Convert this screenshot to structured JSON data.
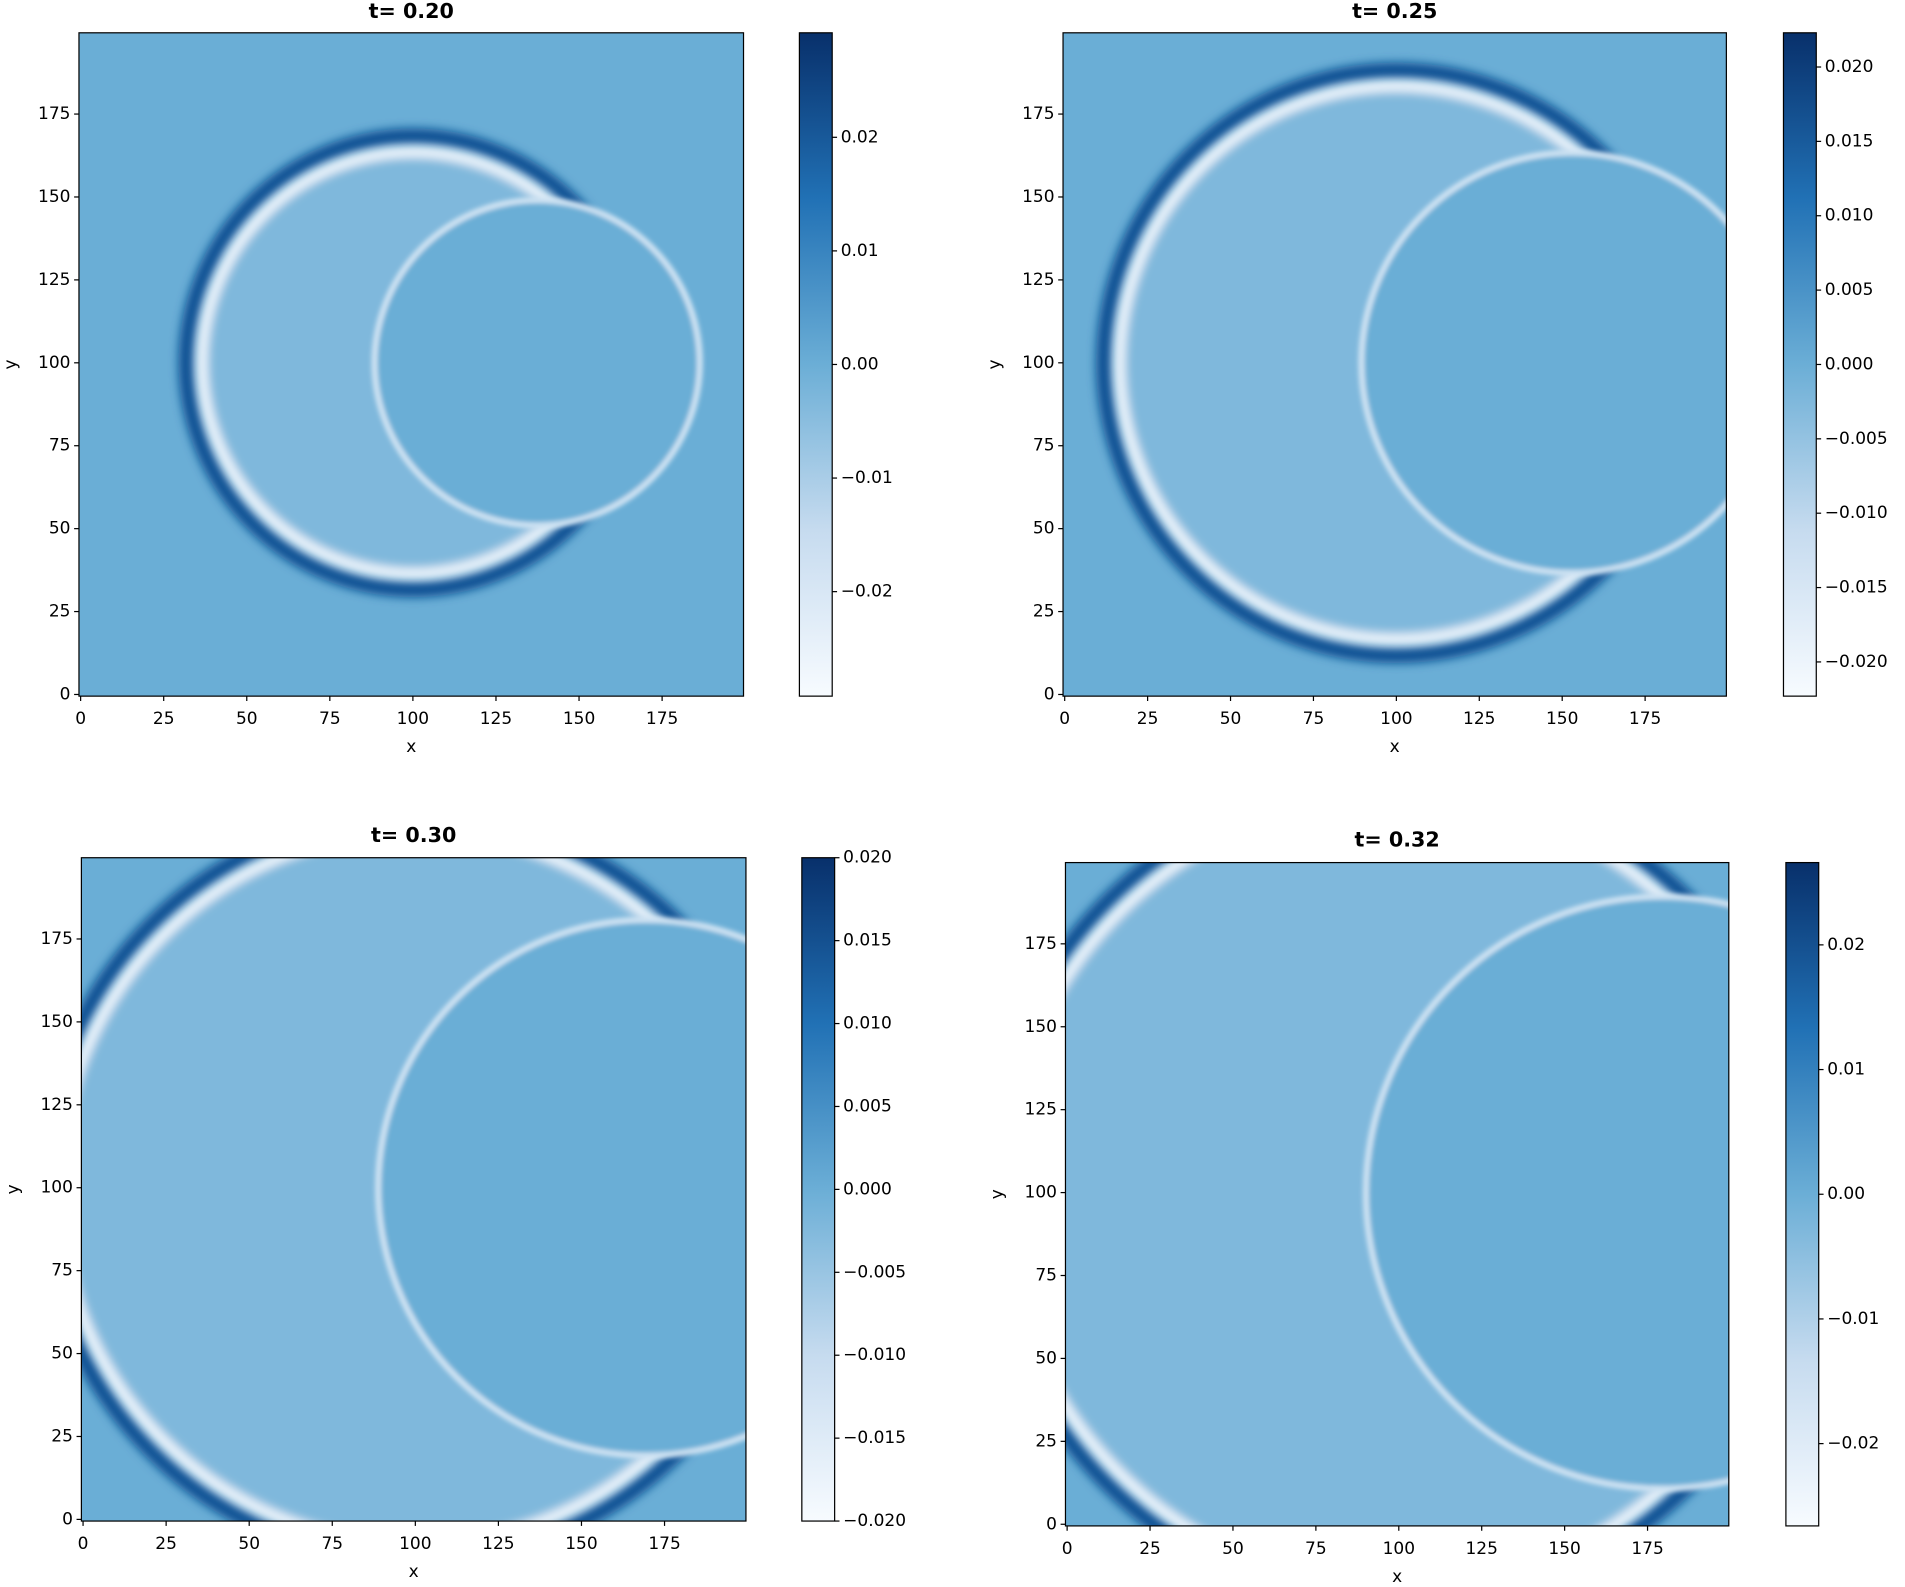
{
  "chart_data": [
    {
      "type": "heatmap",
      "title": "t= 0.20",
      "xlabel": "x",
      "ylabel": "y",
      "xlim": [
        -0.5,
        199.5
      ],
      "ylim": [
        -0.5,
        199.5
      ],
      "xticks": [
        0,
        25,
        50,
        75,
        100,
        125,
        150,
        175
      ],
      "yticks": [
        0,
        25,
        50,
        75,
        100,
        125,
        150,
        175
      ],
      "clim": [
        -0.0292,
        0.0292
      ],
      "cticks": [
        0.02,
        0.01,
        {
          "value": 0,
          "label": "0.00"
        },
        {
          "value": -0.01,
          "label": "−0.01"
        },
        {
          "value": -0.02,
          "label": "−0.02"
        }
      ]
    },
    {
      "type": "heatmap",
      "title": "t= 0.25",
      "xlabel": "x",
      "ylabel": "y",
      "xlim": [
        -0.5,
        199.5
      ],
      "ylim": [
        -0.5,
        199.5
      ],
      "xticks": [
        0,
        25,
        50,
        75,
        100,
        125,
        150,
        175
      ],
      "yticks": [
        0,
        25,
        50,
        75,
        100,
        125,
        150,
        175
      ],
      "clim": [
        -0.0223,
        0.0223
      ],
      "cticks": [
        {
          "value": 0.02,
          "label": "0.020"
        },
        {
          "value": 0.015,
          "label": "0.015"
        },
        {
          "value": 0.01,
          "label": "0.010"
        },
        {
          "value": 0.005,
          "label": "0.005"
        },
        {
          "value": 0,
          "label": "0.000"
        },
        {
          "value": -0.005,
          "label": "−0.005"
        },
        {
          "value": -0.01,
          "label": "−0.010"
        },
        {
          "value": -0.015,
          "label": "−0.015"
        },
        {
          "value": -0.02,
          "label": "−0.020"
        }
      ]
    },
    {
      "type": "heatmap",
      "title": "t= 0.30",
      "xlabel": "x",
      "ylabel": "y",
      "xlim": [
        -0.5,
        199.5
      ],
      "ylim": [
        -0.5,
        199.5
      ],
      "xticks": [
        0,
        25,
        50,
        75,
        100,
        125,
        150,
        175
      ],
      "yticks": [
        0,
        25,
        50,
        75,
        100,
        125,
        150,
        175
      ],
      "clim": [
        -0.02,
        0.02
      ],
      "cticks": [
        {
          "value": 0.02,
          "label": "0.020"
        },
        {
          "value": 0.015,
          "label": "0.015"
        },
        {
          "value": 0.01,
          "label": "0.010"
        },
        {
          "value": 0.005,
          "label": "0.005"
        },
        {
          "value": 0,
          "label": "0.000"
        },
        {
          "value": -0.005,
          "label": "−0.005"
        },
        {
          "value": -0.01,
          "label": "−0.010"
        },
        {
          "value": -0.015,
          "label": "−0.015"
        },
        {
          "value": -0.02,
          "label": "−0.020"
        }
      ]
    },
    {
      "type": "heatmap",
      "title": "t= 0.32",
      "xlabel": "x",
      "ylabel": "y",
      "xlim": [
        -0.5,
        199.5
      ],
      "ylim": [
        -0.5,
        199.5
      ],
      "xticks": [
        0,
        25,
        50,
        75,
        100,
        125,
        150,
        175
      ],
      "yticks": [
        0,
        25,
        50,
        75,
        100,
        125,
        150,
        175
      ],
      "clim": [
        -0.0266,
        0.0266
      ],
      "cticks": [
        0.02,
        0.01,
        {
          "value": 0,
          "label": "0.00"
        },
        {
          "value": -0.01,
          "label": "−0.01"
        },
        {
          "value": -0.02,
          "label": "−0.02"
        }
      ]
    }
  ]
}
